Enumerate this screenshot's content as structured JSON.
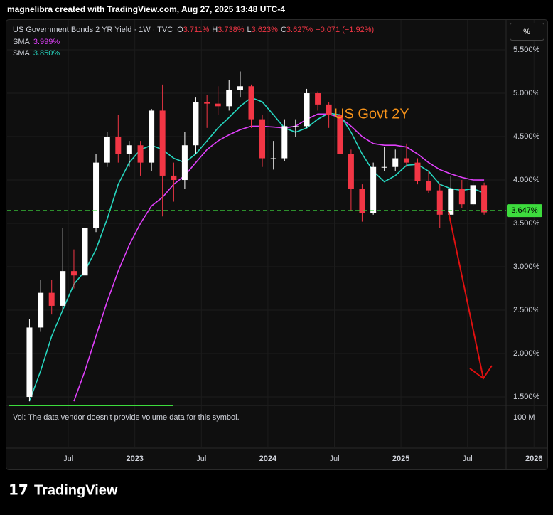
{
  "header": {
    "credit": "magnelibra created with TradingView.com, Aug 27, 2025 13:48 UTC-4",
    "symbol": "US Government Bonds 2 YR Yield · 1W · TVC",
    "ohlc": [
      {
        "key": "O",
        "value": "3.711%"
      },
      {
        "key": "H",
        "value": "3.738%"
      },
      {
        "key": "L",
        "value": "3.623%"
      },
      {
        "key": "C",
        "value": "3.627%"
      }
    ],
    "change": "−0.071 (−1.92%)",
    "scale_button": "%",
    "volume_note": "Vol: The data vendor doesn't provide volume data for this symbol.",
    "volume_scale": "100 M",
    "brand": "TradingView"
  },
  "chart_data": {
    "type": "candlestick",
    "annotation": "US Govt 2Y",
    "x": [
      2022.208,
      2022.292,
      2022.375,
      2022.458,
      2022.542,
      2022.625,
      2022.708,
      2022.792,
      2022.875,
      2022.958,
      2023.042,
      2023.125,
      2023.208,
      2023.292,
      2023.375,
      2023.458,
      2023.542,
      2023.625,
      2023.708,
      2023.792,
      2023.875,
      2023.958,
      2024.042,
      2024.125,
      2024.208,
      2024.292,
      2024.375,
      2024.458,
      2024.542,
      2024.625,
      2024.708,
      2024.792,
      2024.875,
      2024.958,
      2025.042,
      2025.125,
      2025.208,
      2025.292,
      2025.375,
      2025.458,
      2025.542,
      2025.625
    ],
    "open": [
      1.5,
      2.3,
      2.7,
      2.55,
      2.95,
      2.9,
      3.45,
      4.2,
      4.5,
      4.3,
      4.4,
      4.2,
      4.8,
      4.05,
      4.0,
      4.4,
      4.9,
      4.88,
      4.85,
      5.04,
      5.08,
      4.7,
      4.25,
      4.25,
      4.62,
      4.62,
      5.0,
      4.87,
      4.75,
      4.3,
      3.9,
      3.62,
      4.15,
      4.15,
      4.25,
      4.2,
      3.99,
      3.88,
      3.6,
      3.9,
      3.72,
      3.94
    ],
    "high": [
      2.4,
      2.85,
      2.85,
      3.45,
      3.2,
      3.5,
      4.3,
      4.55,
      4.75,
      4.45,
      4.45,
      4.82,
      5.1,
      4.2,
      4.55,
      4.95,
      4.98,
      5.08,
      5.15,
      5.25,
      5.1,
      4.75,
      4.45,
      4.7,
      4.7,
      5.05,
      5.02,
      4.9,
      4.8,
      4.35,
      3.95,
      4.2,
      4.38,
      4.35,
      4.42,
      4.25,
      4.1,
      3.95,
      4.05,
      4.0,
      3.98,
      3.97
    ],
    "low": [
      1.45,
      2.25,
      2.45,
      2.5,
      2.75,
      2.85,
      3.4,
      4.15,
      4.2,
      4.15,
      4.05,
      4.1,
      3.58,
      3.75,
      3.9,
      4.3,
      4.6,
      4.75,
      4.8,
      4.95,
      4.6,
      4.15,
      4.12,
      4.22,
      4.5,
      4.6,
      4.8,
      4.6,
      4.3,
      3.65,
      3.52,
      3.6,
      4.1,
      4.1,
      4.15,
      3.95,
      3.85,
      3.45,
      3.6,
      3.68,
      3.7,
      3.6
    ],
    "close": [
      2.3,
      2.7,
      2.55,
      2.95,
      2.9,
      3.45,
      4.2,
      4.5,
      4.3,
      4.4,
      4.2,
      4.8,
      4.05,
      4.0,
      4.4,
      4.9,
      4.88,
      4.85,
      5.04,
      5.08,
      4.7,
      4.25,
      4.25,
      4.62,
      4.62,
      5.0,
      4.87,
      4.75,
      4.3,
      3.9,
      3.62,
      4.15,
      4.15,
      4.25,
      4.2,
      3.99,
      3.88,
      3.6,
      3.9,
      3.72,
      3.94,
      3.627
    ],
    "up_color": "#ffffff",
    "down_color": "#f23645",
    "series": [
      {
        "name": "SMA",
        "color": "#e040fb",
        "legend_value": "3.999%",
        "values": [
          null,
          null,
          null,
          null,
          1.45,
          1.8,
          2.2,
          2.6,
          2.95,
          3.25,
          3.5,
          3.7,
          3.8,
          3.95,
          4.05,
          4.2,
          4.35,
          4.45,
          4.52,
          4.58,
          4.62,
          4.62,
          4.61,
          4.6,
          4.62,
          4.7,
          4.76,
          4.76,
          4.72,
          4.62,
          4.5,
          4.42,
          4.4,
          4.4,
          4.38,
          4.3,
          4.2,
          4.12,
          4.07,
          4.03,
          4.0,
          3.999
        ]
      },
      {
        "name": "SMA",
        "color": "#26d7c0",
        "legend_value": "3.850%",
        "values": [
          1.45,
          1.8,
          2.2,
          2.5,
          2.8,
          2.95,
          3.2,
          3.55,
          3.95,
          4.2,
          4.35,
          4.4,
          4.35,
          4.25,
          4.2,
          4.3,
          4.45,
          4.6,
          4.72,
          4.85,
          4.95,
          4.9,
          4.75,
          4.6,
          4.55,
          4.6,
          4.7,
          4.77,
          4.75,
          4.55,
          4.3,
          4.1,
          3.98,
          4.05,
          4.17,
          4.18,
          4.1,
          3.95,
          3.9,
          3.88,
          3.9,
          3.85
        ]
      }
    ],
    "price_line": {
      "value": 3.647,
      "label": "3.647%",
      "color": "#3ddc3d"
    },
    "xlim": [
      2022.04,
      2026.1
    ],
    "xticks": [
      {
        "value": 2022.5,
        "label": "Jul"
      },
      2023,
      {
        "value": 2023.5,
        "label": "Jul"
      },
      2024,
      {
        "value": 2024.5,
        "label": "Jul"
      },
      2025,
      {
        "value": 2025.5,
        "label": "Jul"
      },
      2026
    ],
    "ylim": [
      1.402,
      5.828
    ],
    "yticks": [
      {
        "value": 1.5,
        "label": "1.500%"
      },
      {
        "value": 2,
        "label": "2.000%"
      },
      {
        "value": 2.5,
        "label": "2.500%"
      },
      {
        "value": 3,
        "label": "3.000%"
      },
      {
        "value": 3.5,
        "label": "3.500%"
      },
      {
        "value": 4,
        "label": "4.000%"
      },
      {
        "value": 4.5,
        "label": "4.500%"
      },
      {
        "value": 5,
        "label": "5.000%"
      },
      {
        "value": 5.5,
        "label": "5.500%"
      }
    ],
    "grid": true
  }
}
